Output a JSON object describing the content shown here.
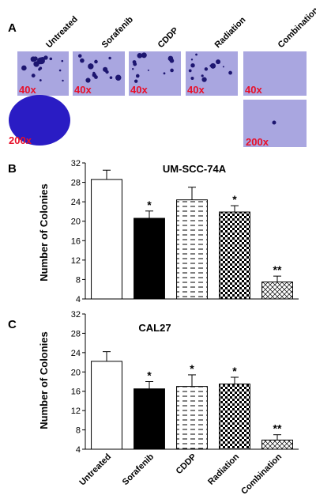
{
  "panel_a": {
    "letter": "A",
    "conditions": [
      "Untreated",
      "Sorafenib",
      "CDDP",
      "Radiation",
      "Combination"
    ],
    "row1_magnification": [
      "40x",
      "40x",
      "40x",
      "40x",
      "40x"
    ],
    "row2_magnification": {
      "untreated": "200x",
      "combination": "200x"
    },
    "colors": {
      "well_background": "#a9a6e0",
      "colony": "#1d1670"
    }
  },
  "charts_shared": {
    "ylabel": "Number of Colonies",
    "xticklabels": [
      "Untreated",
      "Sorafenib",
      "CDDP",
      "Radiation",
      "Combination"
    ],
    "yticks": [
      4,
      8,
      12,
      16,
      20,
      24,
      28,
      32
    ]
  },
  "chart_data": [
    {
      "panel": "B",
      "type": "bar",
      "title": "UM-SCC-74A",
      "xlabel": "",
      "ylabel": "Number of Colonies",
      "categories": [
        "Untreated",
        "Sorafenib",
        "CDDP",
        "Radiation",
        "Combination"
      ],
      "values": [
        28.6,
        20.6,
        24.4,
        21.9,
        7.5
      ],
      "errors": [
        1.9,
        1.5,
        2.6,
        1.3,
        1.2
      ],
      "significance": [
        "",
        "*",
        "",
        "*",
        "**"
      ],
      "patterns": [
        "white",
        "black",
        "dashes",
        "checker",
        "crosshatch"
      ],
      "ylim": [
        4,
        32
      ],
      "grid": false,
      "legend": "none"
    },
    {
      "panel": "C",
      "type": "bar",
      "title": "CAL27",
      "xlabel": "",
      "ylabel": "Number of Colonies",
      "categories": [
        "Untreated",
        "Sorafenib",
        "CDDP",
        "Radiation",
        "Combination"
      ],
      "values": [
        22.2,
        16.5,
        17.0,
        17.5,
        5.9
      ],
      "errors": [
        2.0,
        1.5,
        2.4,
        1.4,
        1.1
      ],
      "significance": [
        "",
        "*",
        "*",
        "*",
        "**"
      ],
      "patterns": [
        "white",
        "black",
        "dashes",
        "checker",
        "crosshatch"
      ],
      "ylim": [
        4,
        32
      ],
      "grid": false,
      "legend": "none"
    }
  ]
}
